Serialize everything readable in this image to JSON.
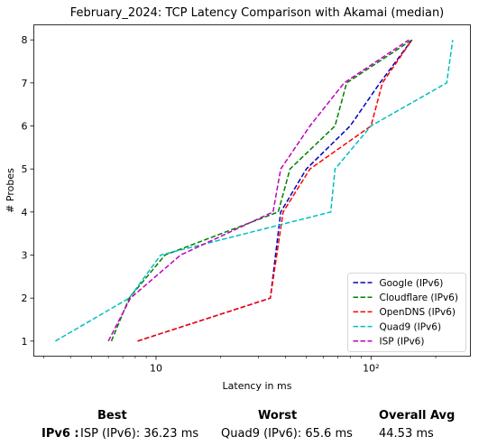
{
  "chart_data": {
    "type": "line",
    "title": "February_2024: TCP Latency Comparison with Akamai (median)",
    "xlabel": "Latency in ms",
    "ylabel": "# Probes",
    "xscale": "log",
    "xlim": [
      2.7,
      290
    ],
    "ylim": [
      0.65,
      8.35
    ],
    "xticks": [
      {
        "value": 10,
        "label": "10"
      },
      {
        "value": 100,
        "label": "10²"
      }
    ],
    "yticks": [
      1,
      2,
      3,
      4,
      5,
      6,
      7,
      8
    ],
    "legend_position": "lower-right",
    "series": [
      {
        "name": "Google (IPv6)",
        "color": "#0000bf",
        "x": [
          8.2,
          34,
          38,
          50,
          80,
          110,
          155
        ],
        "y": [
          1,
          2,
          4,
          5,
          6,
          7,
          8
        ]
      },
      {
        "name": "Cloudflare (IPv6)",
        "color": "#008000",
        "x": [
          6.2,
          7.5,
          11,
          37,
          42,
          68,
          77,
          155
        ],
        "y": [
          1,
          2,
          3,
          4,
          5,
          6,
          7,
          8
        ]
      },
      {
        "name": "OpenDNS (IPv6)",
        "color": "#ff0000",
        "x": [
          8.2,
          34,
          39,
          52,
          100,
          113,
          155
        ],
        "y": [
          1,
          2,
          4,
          5,
          6,
          7,
          8
        ]
      },
      {
        "name": "Quad9 (IPv6)",
        "color": "#00bfbf",
        "x": [
          3.4,
          7.5,
          10.5,
          65,
          68,
          100,
          225,
          240
        ],
        "y": [
          1,
          2,
          3,
          4,
          5,
          6,
          7,
          8
        ]
      },
      {
        "name": "ISP (IPv6)",
        "color": "#bf00bf",
        "x": [
          6.0,
          7.6,
          13,
          35,
          38,
          52,
          75,
          150
        ],
        "y": [
          1,
          2,
          3,
          4,
          5,
          6,
          7,
          8
        ]
      }
    ]
  },
  "summary": {
    "best_header": "Best",
    "worst_header": "Worst",
    "avg_header": "Overall Avg",
    "row_label": "IPv6 :",
    "best": "ISP (IPv6): 36.23 ms",
    "worst": "Quad9 (IPv6): 65.6 ms",
    "overall_avg": "44.53 ms"
  }
}
